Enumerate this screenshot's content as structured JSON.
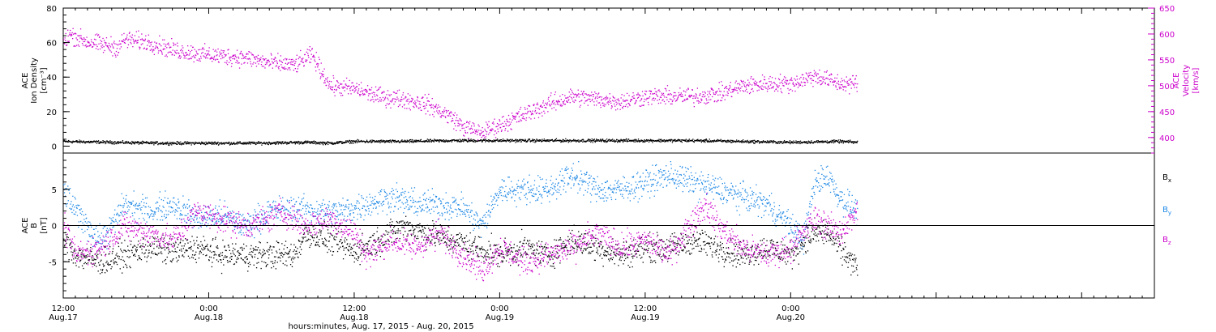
{
  "chart_data": {
    "type": "scatter",
    "title": "",
    "xlabel": "hours:minutes, Aug. 17, 2015 - Aug. 20, 2015",
    "x_range_hours": [
      0,
      90
    ],
    "x_ticks": [
      {
        "hour": 0,
        "time": "12:00",
        "date": "Aug.17"
      },
      {
        "hour": 12,
        "time": "0:00",
        "date": "Aug.18"
      },
      {
        "hour": 24,
        "time": "12:00",
        "date": "Aug.18"
      },
      {
        "hour": 36,
        "time": "0:00",
        "date": "Aug.19"
      },
      {
        "hour": 48,
        "time": "12:00",
        "date": "Aug.19"
      },
      {
        "hour": 60,
        "time": "0:00",
        "date": "Aug.20"
      }
    ],
    "colors": {
      "black": "#000000",
      "magenta": "#cc00cc",
      "blue": "#1e88e5"
    },
    "panels": [
      {
        "id": "plasma",
        "left_axis": {
          "label_lines": [
            "ACE",
            "Ion Density",
            "[cm⁻³]"
          ],
          "range": [
            -4,
            80
          ],
          "ticks": [
            0,
            20,
            40,
            60,
            80
          ],
          "color": "#000000"
        },
        "right_axis": {
          "label_lines": [
            "ACE",
            "Velocity",
            "[km/s]"
          ],
          "range": [
            370,
            650
          ],
          "ticks": [
            400,
            450,
            500,
            550,
            600,
            650
          ],
          "color": "#cc00cc"
        },
        "series": [
          {
            "name": "Ion Density",
            "axis": "left",
            "color": "#000000",
            "x": [
              0,
              4,
              8,
              12,
              16,
              20,
              22,
              24,
              28,
              32,
              36,
              40,
              44,
              48,
              52,
              56,
              60,
              64,
              65.5
            ],
            "y": [
              3,
              2.5,
              2,
              2,
              2,
              2.5,
              2,
              3,
              3,
              3.5,
              3.5,
              3.5,
              3.5,
              3.5,
              3.5,
              3,
              2.5,
              3,
              2.5
            ]
          },
          {
            "name": "Velocity",
            "axis": "right",
            "color": "#cc00cc",
            "x": [
              0,
              0.5,
              2,
              4.5,
              5,
              7,
              9,
              12,
              15,
              17,
              19,
              20.5,
              22,
              24,
              26,
              28,
              30,
              32,
              33,
              34.5,
              36,
              38,
              40,
              42,
              44,
              46,
              48,
              50,
              52,
              54,
              56,
              58,
              60,
              62,
              64,
              65.5
            ],
            "y": [
              585,
              600,
              585,
              575,
              590,
              585,
              570,
              560,
              555,
              545,
              540,
              560,
              500,
              495,
              480,
              475,
              465,
              440,
              420,
              410,
              425,
              445,
              465,
              480,
              475,
              470,
              480,
              480,
              480,
              485,
              500,
              505,
              505,
              520,
              505,
              505
            ]
          }
        ]
      },
      {
        "id": "magnetic",
        "left_axis": {
          "label_lines": [
            "ACE",
            "B",
            "[nT]"
          ],
          "range": [
            -10,
            10
          ],
          "ticks": [
            -5,
            0,
            5
          ],
          "color": "#000000"
        },
        "zero_line": true,
        "series": [
          {
            "name": "Bx",
            "label_text": "B",
            "label_sub": "x",
            "color": "#000000",
            "x": [
              0,
              1,
              3,
              5,
              7,
              9,
              11,
              13,
              15,
              17,
              19,
              20,
              22,
              24,
              26,
              28,
              30,
              32,
              34,
              36,
              38,
              40,
              42,
              44,
              46,
              48,
              50,
              52,
              54,
              56,
              58,
              60,
              61,
              62,
              63,
              64,
              65.5
            ],
            "y": [
              -2,
              -4,
              -5,
              -4,
              -3,
              -3.5,
              -3,
              -4,
              -4,
              -4,
              -4,
              -1,
              -2,
              -3.5,
              -2,
              0,
              -1,
              -2,
              -3,
              -4,
              -3,
              -4,
              -2,
              -3,
              -4,
              -3,
              -3,
              -2,
              -3,
              -4,
              -3,
              -4,
              -2,
              -1,
              -1,
              -3,
              -6
            ]
          },
          {
            "name": "By",
            "label_text": "B",
            "label_sub": "y",
            "color": "#1e88e5",
            "x": [
              0,
              1,
              3,
              4,
              5,
              7,
              9,
              11,
              13,
              15,
              17,
              19,
              21,
              23,
              25,
              27,
              29,
              31,
              33,
              34.5,
              36,
              38,
              40,
              42,
              44,
              46,
              48,
              50,
              52,
              54,
              56,
              58,
              60,
              61,
              62,
              63,
              64,
              65.5
            ],
            "y": [
              5,
              2,
              -2,
              0,
              3,
              2,
              3,
              1,
              1.5,
              0,
              2,
              2.5,
              2,
              2,
              3,
              4,
              3,
              3,
              2.5,
              0,
              5,
              5,
              5,
              7,
              5,
              5,
              6,
              7,
              6,
              5,
              4,
              3,
              0,
              -2,
              6,
              7,
              4,
              2
            ]
          },
          {
            "name": "Bz",
            "label_text": "B",
            "label_sub": "z",
            "color": "#cc00cc",
            "x": [
              0,
              1,
              3,
              5,
              7,
              9,
              11,
              13,
              15,
              17,
              18,
              20,
              22,
              24,
              25,
              27,
              29,
              31,
              33,
              34.5,
              36,
              38,
              40,
              42,
              44,
              46,
              48,
              50,
              52,
              53,
              54,
              56,
              58,
              60,
              61,
              62,
              63,
              64,
              65.5
            ],
            "y": [
              0,
              -4,
              -3,
              0,
              -1,
              -2,
              2,
              1,
              0,
              1,
              2,
              0,
              1,
              -1,
              -4,
              -2,
              -3,
              -1,
              -4,
              -6,
              -3,
              -5,
              -4,
              -3,
              -1,
              -3,
              -2,
              -4,
              1,
              3,
              0,
              -3,
              -4,
              -3,
              -1,
              1,
              0,
              -1,
              2
            ]
          }
        ]
      }
    ]
  }
}
